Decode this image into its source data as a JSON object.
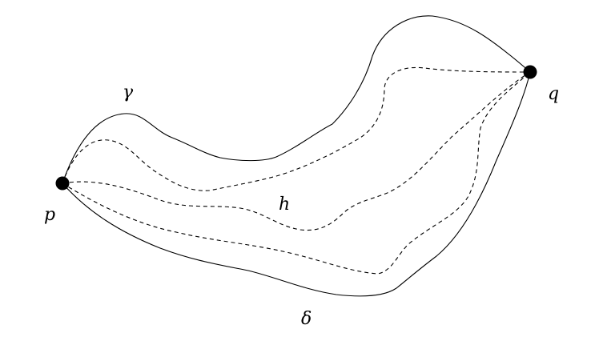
{
  "diagram": {
    "points": {
      "p": {
        "label": "p"
      },
      "q": {
        "label": "q"
      }
    },
    "curves": {
      "gamma": {
        "label": "γ",
        "style": "solid"
      },
      "delta": {
        "label": "δ",
        "style": "solid"
      },
      "h": {
        "label": "h",
        "style": "dashed"
      }
    },
    "colors": {
      "stroke": "#000000",
      "background": "#ffffff"
    }
  }
}
